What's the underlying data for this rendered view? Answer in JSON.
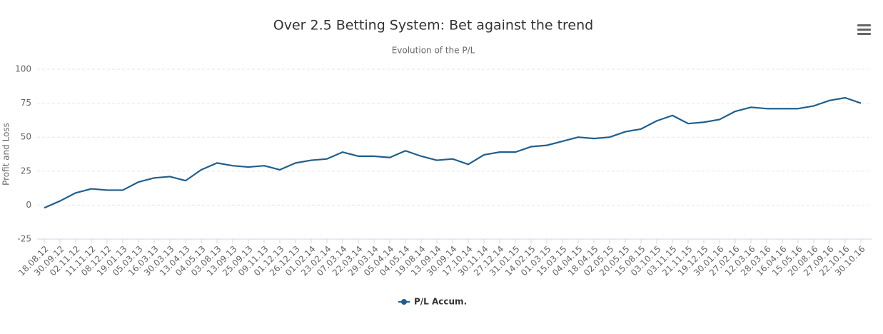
{
  "chart_data": {
    "type": "line",
    "title": "Over 2.5 Betting System: Bet against the trend",
    "subtitle": "Evolution of the P/L",
    "y_label": "Profit and Loss",
    "categories": [
      "18.08.12",
      "30.09.12",
      "02.11.12",
      "11.11.12",
      "08.12.12",
      "19.01.13",
      "05.03.13",
      "16.03.13",
      "30.03.13",
      "13.04.13",
      "04.05.13",
      "03.08.13",
      "13.09.13",
      "25.09.13",
      "09.11.13",
      "01.12.13",
      "26.12.13",
      "01.02.14",
      "23.02.14",
      "07.03.14",
      "22.03.14",
      "29.03.14",
      "05.04.14",
      "04.05.14",
      "19.08.14",
      "13.09.14",
      "30.09.14",
      "17.10.14",
      "30.11.14",
      "27.12.14",
      "31.01.15",
      "14.02.15",
      "01.03.15",
      "15.03.15",
      "04.04.15",
      "18.04.15",
      "02.05.15",
      "20.05.15",
      "15.08.15",
      "03.10.15",
      "03.11.15",
      "21.11.15",
      "19.12.15",
      "30.01.16",
      "27.02.16",
      "12.03.16",
      "28.03.16",
      "16.04.16",
      "15.05.16",
      "20.08.16",
      "27.09.16",
      "22.10.16",
      "30.10.16"
    ],
    "series": [
      {
        "name": "P/L Accum.",
        "color": "#1f5f8e",
        "values": [
          -2,
          3,
          9,
          12,
          11,
          11,
          17,
          20,
          21,
          18,
          26,
          31,
          29,
          28,
          29,
          26,
          31,
          33,
          34,
          39,
          36,
          36,
          35,
          40,
          36,
          33,
          34,
          30,
          37,
          39,
          39,
          43,
          44,
          47,
          50,
          49,
          50,
          54,
          56,
          62,
          66,
          60,
          61,
          63,
          69,
          72,
          71,
          71,
          71,
          73,
          77,
          79,
          75
        ]
      }
    ],
    "ylim": [
      -25,
      100
    ],
    "yticks": [
      -25,
      0,
      25,
      50,
      75,
      100
    ],
    "grid": true,
    "legend": "bottom"
  }
}
